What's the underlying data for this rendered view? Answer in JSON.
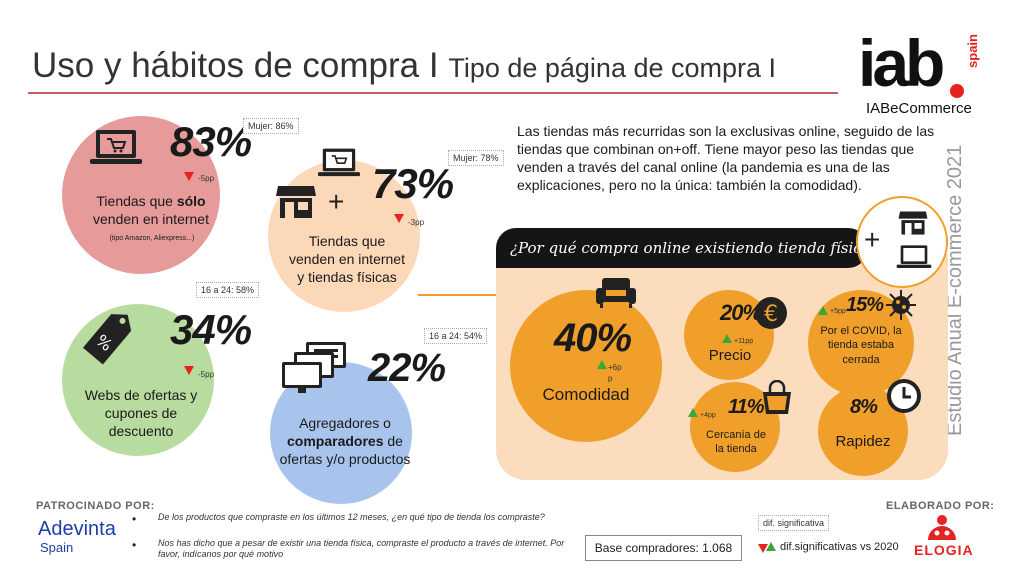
{
  "header": {
    "title": "Uso y hábitos de compra I",
    "subtitle": "Tipo de página de compra I",
    "logo_text": "iab",
    "logo_region": "spain",
    "brand_tagline": "IABeCommerce",
    "vertical_text": "Estudio Anual E-commerce  2021"
  },
  "summary": "Las tiendas más recurridas son la exclusivas online, seguido de las tiendas que combinan on+off. Tiene mayor peso las tiendas que venden a través del canal online (la pandemia es una de las explicaciones, pero no la única: también la comodidad).",
  "store_types": [
    {
      "pct": "83%",
      "label_pre": "Tiendas que ",
      "label_bold": "sólo",
      "label_post": "venden en internet",
      "sub": "(tipo Amazon, Aliexpress...)",
      "note": "Mujer: 86%",
      "change": "-5pp",
      "color": "#e79a9a"
    },
    {
      "pct": "73%",
      "label": "Tiendas que venden en internet y tiendas físicas",
      "note": "Mujer: 78%",
      "change": "-3pp",
      "color": "#fbd8b8"
    },
    {
      "pct": "34%",
      "label": "Webs de ofertas y cupones de descuento",
      "note": "16 a 24: 58%",
      "change": "-5pp",
      "color": "#b8dca0"
    },
    {
      "pct": "22%",
      "label_pre": "Agregadores o ",
      "label_bold": "comparadores",
      "label_post": " de ofertas y/o productos",
      "note": "16 a 24: 54%",
      "color": "#a8c4ec"
    }
  ],
  "reasons": {
    "question": "¿Por qué compra online existiendo tienda física?",
    "items": [
      {
        "pct": "40%",
        "label": "Comodidad",
        "change": "+6p p",
        "direction": "up"
      },
      {
        "pct": "20%",
        "label": "Precio",
        "change": "+11pp",
        "direction": "up"
      },
      {
        "pct": "15%",
        "label": "Por el COVID, la tienda estaba cerrada",
        "change": "+5pp",
        "direction": "up"
      },
      {
        "pct": "11%",
        "label": "Cercanía de la tienda",
        "change": "+4pp",
        "direction": "up"
      },
      {
        "pct": "8%",
        "label": "Rapidez"
      }
    ]
  },
  "footer": {
    "sponsored_by": "PATROCINADO POR:",
    "sponsor_name": "Adevinta",
    "sponsor_region": "Spain",
    "bullets": [
      "De los productos que compraste en los últimos 12 meses, ¿en qué tipo de tienda los compraste?",
      "Nos has dicho que a pesar de existir una tienda física, compraste el producto a través de internet. Por favor, indícanos por qué motivo"
    ],
    "base": "Base compradores: 1.068",
    "legend_sig": "dif. significativa",
    "legend_sig_vs": "dif.significativas vs 2020",
    "made_by": "ELABORADO POR:",
    "maker_name": "ELOGIA"
  },
  "colors": {
    "accent_red": "#e52320",
    "orange": "#f0a02a",
    "panel_bg": "#fbdcbd"
  }
}
